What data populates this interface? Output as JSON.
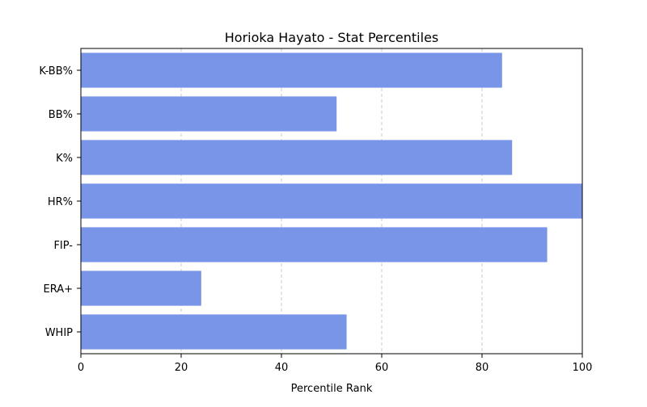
{
  "chart_data": {
    "type": "bar",
    "orientation": "horizontal",
    "title": "Horioka Hayato - Stat Percentiles",
    "xlabel": "Percentile Rank",
    "ylabel": "",
    "categories": [
      "K-BB%",
      "BB%",
      "K%",
      "HR%",
      "FIP-",
      "ERA+",
      "WHIP"
    ],
    "values": [
      84,
      51,
      86,
      100,
      93,
      24,
      53
    ],
    "xlim": [
      0,
      100
    ],
    "xticks": [
      0,
      20,
      40,
      60,
      80,
      100
    ],
    "grid": "x-dashed",
    "legend": "none",
    "colors": {
      "bar": "#7895e8",
      "grid": "#c8c8c8",
      "axis": "#000000"
    }
  }
}
